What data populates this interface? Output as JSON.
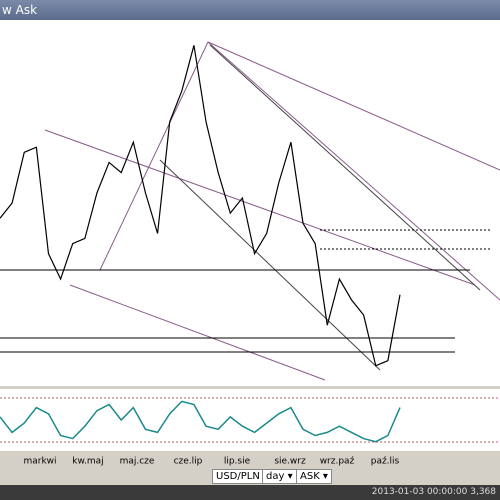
{
  "window": {
    "title": "w Ask"
  },
  "chart_data": {
    "type": "line",
    "color": "#000000",
    "values": [
      3.298,
      3.325,
      3.415,
      3.424,
      3.235,
      3.19,
      3.253,
      3.262,
      3.343,
      3.397,
      3.379,
      3.433,
      3.343,
      3.271,
      3.469,
      3.524,
      3.605,
      3.469,
      3.379,
      3.307,
      3.334,
      3.235,
      3.271,
      3.361,
      3.433,
      3.289,
      3.253,
      3.108,
      3.19,
      3.153,
      3.126,
      3.036,
      3.045,
      3.162
    ],
    "ylim": [
      3.0,
      3.65
    ],
    "oscillator": {
      "color": "#1a8a8a",
      "values": [
        55,
        30,
        45,
        70,
        60,
        25,
        20,
        40,
        65,
        75,
        50,
        70,
        35,
        30,
        60,
        80,
        75,
        40,
        35,
        55,
        40,
        30,
        45,
        60,
        70,
        35,
        25,
        30,
        40,
        30,
        20,
        15,
        25,
        70
      ],
      "ylim": [
        0,
        100
      ]
    }
  },
  "axis_labels": [
    "markwi",
    "kw.maj",
    "maj.cze",
    "cze.lip",
    "lip.sie",
    "sie.wrz",
    "wrz.paź",
    "paź.lis"
  ],
  "toolbar": {
    "symbol": "USD/PLN ▾",
    "period": "day ▾",
    "side": "ASK ▾"
  },
  "status": "2013-01-03 00:00:00  3,368"
}
